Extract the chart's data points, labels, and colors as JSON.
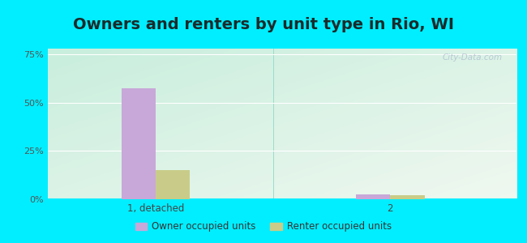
{
  "title": "Owners and renters by unit type in Rio, WI",
  "categories": [
    "1, detached",
    "2"
  ],
  "owner_values": [
    57.5,
    2.5
  ],
  "renter_values": [
    15.0,
    2.0
  ],
  "owner_color": "#c8a8d8",
  "renter_color": "#c8cc88",
  "yticks": [
    0,
    25,
    50,
    75
  ],
  "ytick_labels": [
    "0%",
    "25%",
    "50%",
    "75%"
  ],
  "ylim": [
    0,
    78
  ],
  "background_cyan": "#00eeff",
  "watermark": "City-Data.com",
  "legend_owner": "Owner occupied units",
  "legend_renter": "Renter occupied units",
  "title_fontsize": 14,
  "bar_width": 0.38,
  "group_positions": [
    1.2,
    3.8
  ],
  "xlim": [
    0,
    5.2
  ]
}
